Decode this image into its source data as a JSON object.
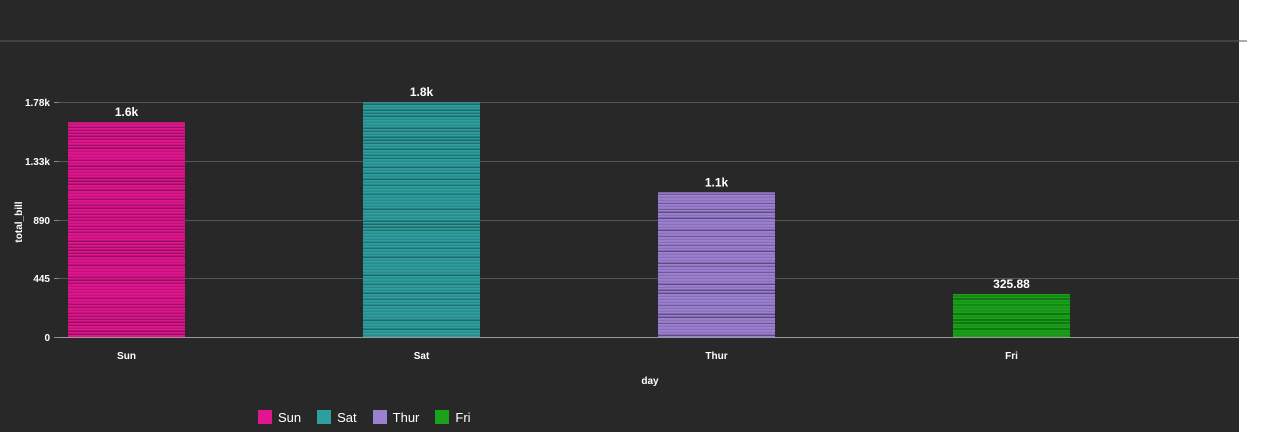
{
  "chart_data": {
    "type": "bar",
    "categories": [
      "Sun",
      "Sat",
      "Thur",
      "Fri"
    ],
    "values": [
      1627.16,
      1778.4,
      1096.33,
      325.88
    ],
    "data_labels": [
      "1.6k",
      "1.8k",
      "1.1k",
      "325.88"
    ],
    "colors": [
      "#e0168f",
      "#2e9e9e",
      "#9b7fd0",
      "#1aa31a"
    ],
    "xlabel": "day",
    "ylabel": "total_bill",
    "yticks": [
      0,
      445,
      890,
      1335,
      1780
    ],
    "ytick_labels": [
      "0",
      "445",
      "890",
      "1.33k",
      "1.78k"
    ],
    "ylim": [
      0,
      1780
    ],
    "grid": true,
    "legend_position": "bottom-left"
  },
  "legend": {
    "items": [
      {
        "label": "Sun",
        "color": "#e0168f"
      },
      {
        "label": "Sat",
        "color": "#2e9e9e"
      },
      {
        "label": "Thur",
        "color": "#9b7fd0"
      },
      {
        "label": "Fri",
        "color": "#1aa31a"
      }
    ]
  }
}
